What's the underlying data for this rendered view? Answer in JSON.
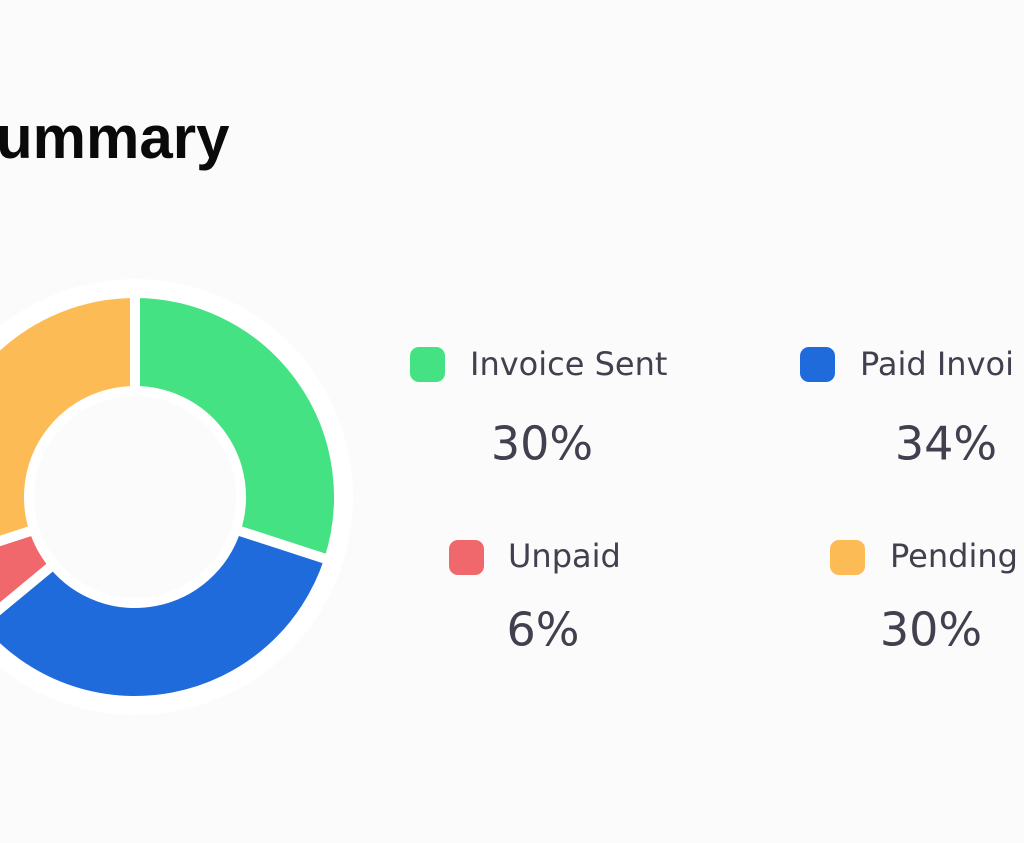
{
  "chart_data": {
    "type": "pie",
    "donut": true,
    "title": "ummary",
    "categories": [
      "Invoice Sent",
      "Paid Invoi",
      "Unpaid",
      "Pending"
    ],
    "values": [
      30,
      34,
      6,
      30
    ],
    "value_labels": [
      "30%",
      "34%",
      "6%",
      "30%"
    ],
    "colors": [
      "#45e283",
      "#206bdc",
      "#f0686b",
      "#fdbb55"
    ]
  }
}
